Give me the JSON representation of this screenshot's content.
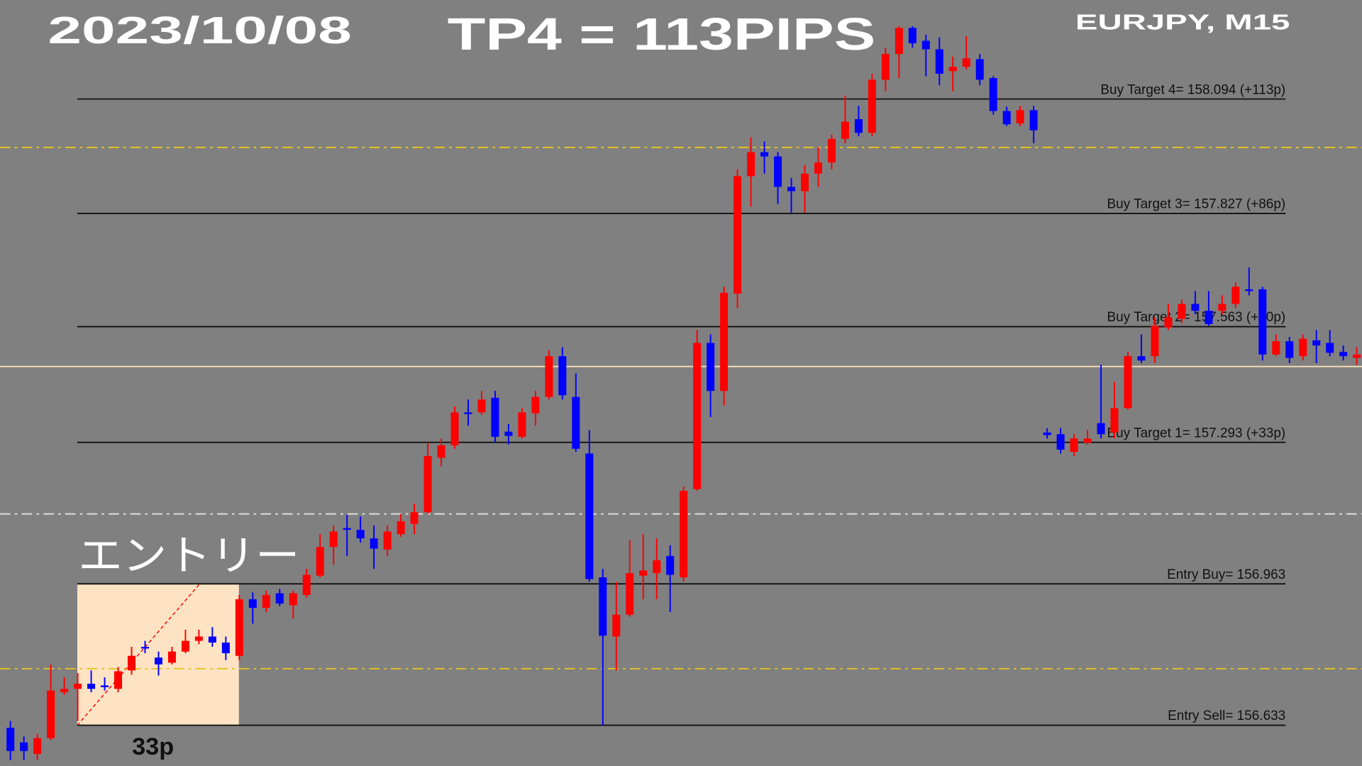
{
  "header": {
    "date": "2023/10/08",
    "headline": "TP4 = 113PIPS",
    "symbol": "EURJPY, M15"
  },
  "annotations": {
    "entry": "エントリー",
    "range": "33p"
  },
  "chart_data": {
    "type": "candlestick",
    "ylim": [
      156.538,
      158.325
    ],
    "background": "#808080",
    "up_color": "#ff0000",
    "down_color": "#0000ff",
    "open": [
      156.627,
      156.593,
      156.566,
      156.603,
      156.71,
      156.718,
      156.73,
      156.726,
      156.718,
      156.761,
      156.816,
      156.791,
      156.779,
      156.805,
      156.83,
      156.84,
      156.826,
      156.795,
      156.927,
      156.907,
      156.941,
      156.913,
      156.937,
      156.982,
      157.049,
      157.093,
      157.089,
      157.069,
      157.043,
      157.079,
      157.103,
      157.13,
      157.257,
      157.286,
      157.363,
      157.363,
      157.397,
      157.318,
      157.306,
      157.361,
      157.399,
      157.494,
      157.399,
      157.267,
      156.978,
      156.84,
      156.891,
      156.982,
      156.988,
      157.028,
      156.978,
      157.184,
      157.525,
      157.413,
      157.64,
      157.914,
      157.97,
      157.96,
      157.889,
      157.879,
      157.92,
      157.946,
      158.001,
      158.047,
      158.015,
      158.139,
      158.199,
      158.26,
      158.23,
      158.21,
      158.159,
      158.169,
      158.187,
      158.143,
      158.066,
      158.037,
      158.068,
      157.316,
      157.312,
      157.271,
      157.292,
      157.338,
      157.316,
      157.373,
      157.494,
      157.494,
      157.561,
      157.581,
      157.616,
      157.6,
      157.6,
      157.616,
      157.65,
      157.65,
      157.498,
      157.529,
      157.494,
      157.531,
      157.525,
      157.504,
      157.49
    ],
    "high": [
      156.643,
      156.607,
      156.613,
      156.775,
      156.745,
      156.755,
      156.761,
      156.745,
      156.769,
      156.816,
      156.83,
      156.805,
      156.816,
      156.856,
      156.856,
      156.862,
      156.84,
      156.937,
      156.943,
      156.947,
      156.951,
      156.947,
      156.998,
      157.079,
      157.099,
      157.124,
      157.12,
      157.099,
      157.099,
      157.126,
      157.15,
      157.292,
      157.302,
      157.377,
      157.393,
      157.413,
      157.413,
      157.336,
      157.373,
      157.413,
      157.508,
      157.515,
      157.454,
      157.322,
      156.998,
      156.968,
      157.065,
      157.079,
      157.069,
      157.053,
      157.19,
      157.555,
      157.545,
      157.656,
      157.93,
      158.005,
      157.995,
      157.97,
      157.91,
      157.94,
      157.981,
      158.011,
      158.102,
      158.078,
      158.153,
      158.214,
      158.264,
      158.264,
      158.244,
      158.238,
      158.193,
      158.24,
      158.199,
      158.147,
      158.076,
      158.078,
      158.078,
      157.326,
      157.326,
      157.312,
      157.322,
      157.474,
      157.434,
      157.504,
      157.545,
      157.585,
      157.616,
      157.626,
      157.646,
      157.646,
      157.636,
      157.666,
      157.701,
      157.656,
      157.545,
      157.539,
      157.545,
      157.555,
      157.555,
      157.519,
      157.515
    ],
    "low": [
      156.552,
      156.552,
      156.552,
      156.599,
      156.704,
      156.643,
      156.71,
      156.714,
      156.71,
      156.751,
      156.801,
      156.749,
      156.775,
      156.801,
      156.822,
      156.816,
      156.785,
      156.785,
      156.87,
      156.897,
      156.911,
      156.882,
      156.931,
      156.978,
      157.008,
      157.028,
      157.059,
      156.998,
      157.028,
      157.073,
      157.079,
      157.126,
      157.237,
      157.278,
      157.332,
      157.357,
      157.292,
      157.288,
      157.302,
      157.332,
      157.393,
      157.393,
      157.271,
      156.968,
      156.633,
      156.761,
      156.886,
      156.927,
      156.927,
      156.897,
      156.968,
      157.18,
      157.352,
      157.379,
      157.606,
      157.843,
      157.92,
      157.849,
      157.829,
      157.829,
      157.889,
      157.93,
      157.991,
      158.007,
      158.007,
      158.112,
      158.143,
      158.214,
      158.147,
      158.126,
      158.112,
      158.163,
      158.126,
      158.058,
      158.031,
      158.031,
      157.991,
      157.302,
      157.267,
      157.261,
      157.288,
      157.302,
      157.302,
      157.369,
      157.478,
      157.478,
      157.555,
      157.571,
      157.592,
      157.565,
      157.592,
      157.606,
      157.636,
      157.484,
      157.494,
      157.478,
      157.484,
      157.478,
      157.494,
      157.484,
      157.474
    ],
    "close": [
      156.573,
      156.573,
      156.603,
      156.714,
      156.718,
      156.73,
      156.718,
      156.724,
      156.759,
      156.795,
      156.814,
      156.775,
      156.805,
      156.83,
      156.84,
      156.826,
      156.801,
      156.927,
      156.907,
      156.937,
      156.917,
      156.941,
      156.984,
      157.049,
      157.085,
      157.089,
      157.069,
      157.045,
      157.085,
      157.109,
      157.13,
      157.261,
      157.286,
      157.363,
      157.361,
      157.393,
      157.306,
      157.308,
      157.363,
      157.399,
      157.494,
      157.403,
      157.278,
      156.974,
      156.842,
      156.891,
      156.988,
      156.994,
      157.018,
      156.984,
      157.18,
      157.525,
      157.413,
      157.642,
      157.914,
      157.97,
      157.96,
      157.889,
      157.879,
      157.92,
      157.946,
      158.001,
      158.041,
      158.015,
      158.139,
      158.199,
      158.26,
      158.224,
      158.21,
      158.153,
      158.169,
      158.189,
      158.139,
      158.066,
      158.035,
      158.068,
      158.021,
      157.31,
      157.276,
      157.302,
      157.302,
      157.312,
      157.373,
      157.494,
      157.484,
      157.565,
      157.585,
      157.616,
      157.6,
      157.569,
      157.616,
      157.656,
      157.646,
      157.498,
      157.529,
      157.49,
      157.535,
      157.519,
      157.502,
      157.494,
      157.498
    ],
    "levels": [
      {
        "label": "Buy Target 4= 158.094  (+113p)",
        "value": 158.094
      },
      {
        "label": "Buy Target 3= 157.827  (+86p)",
        "value": 157.827
      },
      {
        "label": "Buy Target 2= 157.563  (+60p)",
        "value": 157.563
      },
      {
        "label": "Buy Target 1= 157.293  (+33p)",
        "value": 157.293
      },
      {
        "label": "Entry Buy= 156.963",
        "value": 156.963
      },
      {
        "label": "Entry Sell= 156.633",
        "value": 156.633
      }
    ],
    "level_color": "#111111",
    "reference_lines": [
      {
        "value": 157.981,
        "color": "#e8c21e",
        "style": "dashdot"
      },
      {
        "value": 157.47,
        "color": "#f2d9b3",
        "style": "solid"
      },
      {
        "value": 157.126,
        "color": "#dddddd",
        "style": "dashdot"
      },
      {
        "value": 156.765,
        "color": "#e8c21e",
        "style": "dashdot"
      }
    ],
    "range_box_color": "#fde3c3"
  }
}
